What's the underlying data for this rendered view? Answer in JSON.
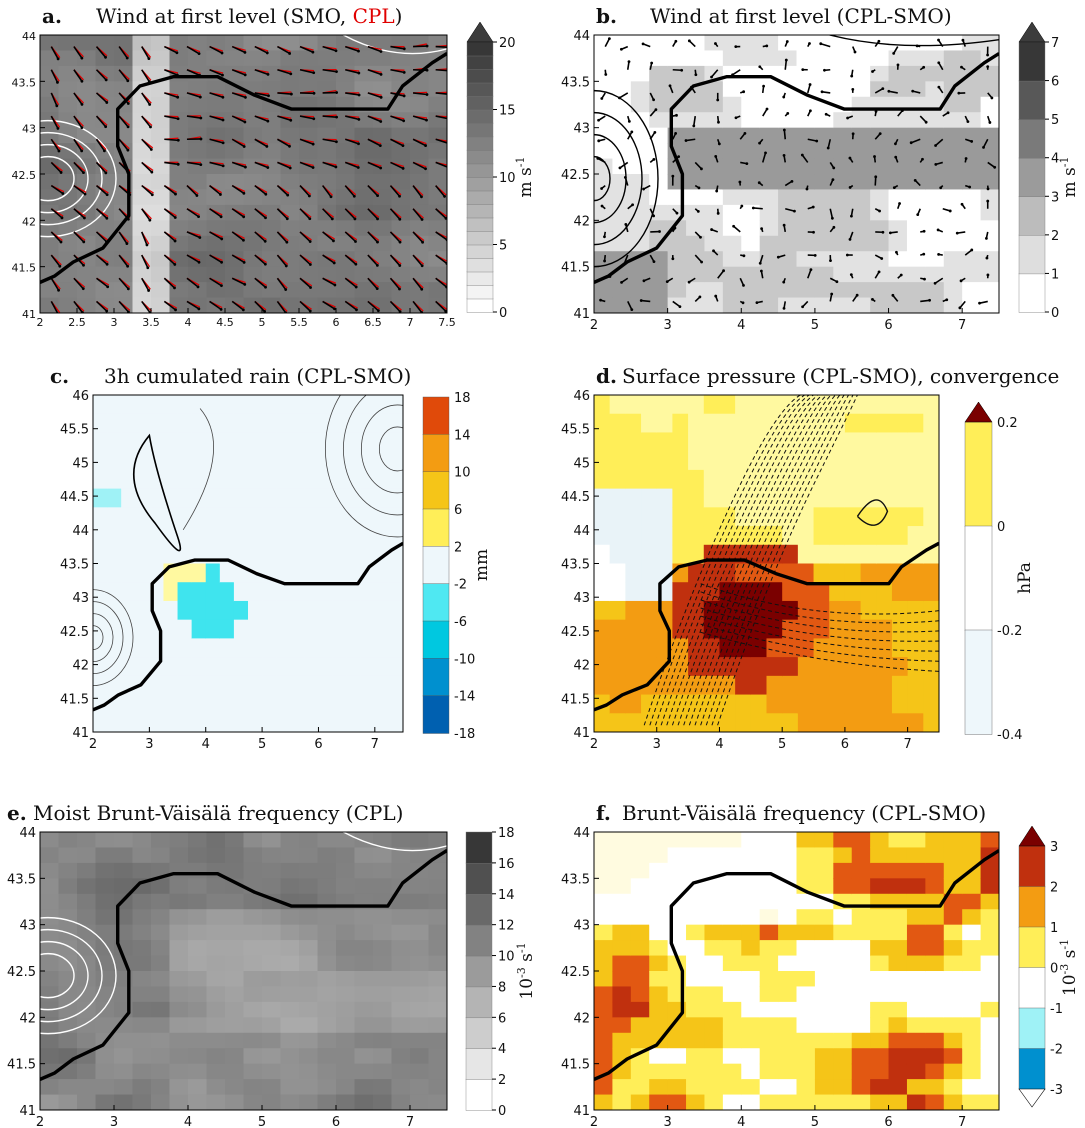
{
  "chart_data": [
    {
      "panel": "a",
      "type": "heatmap",
      "letter": "a.",
      "title": "Wind at first level (SMO, ",
      "title_highlight": "CPL",
      "title_end": ")",
      "highlight_color": "#e00000",
      "xlim": [
        2,
        7.5
      ],
      "ylim": [
        41,
        44
      ],
      "xticks": [
        "2",
        "2.5",
        "3",
        "3.5",
        "4",
        "4.5",
        "5",
        "5.5",
        "6",
        "6.5",
        "7",
        "7.5"
      ],
      "yticks": [
        "41",
        "41.5",
        "42",
        "42.5",
        "43",
        "43.5",
        "44"
      ],
      "colorbar": {
        "labels": [
          "0",
          "5",
          "10",
          "15",
          "20"
        ],
        "unit": "m s-1",
        "max": 20,
        "levels": 20,
        "top_arrow": true,
        "style": "gray"
      },
      "wind_vectors": true,
      "overlay_vector_color": "#e00000",
      "contour_color": "#ffffff"
    },
    {
      "panel": "b",
      "type": "heatmap",
      "letter": "b.",
      "title": "Wind at first level (CPL-SMO)",
      "xlim": [
        2,
        7.5
      ],
      "ylim": [
        41,
        44
      ],
      "xticks": [
        "2",
        "3",
        "4",
        "5",
        "6",
        "7"
      ],
      "yticks": [
        "41",
        "41.5",
        "42",
        "42.5",
        "43",
        "43.5",
        "44"
      ],
      "colorbar": {
        "labels": [
          "0",
          "1",
          "2",
          "3",
          "4",
          "5",
          "6",
          "7"
        ],
        "unit": "m s-1",
        "max": 7,
        "levels": 7,
        "top_arrow": true,
        "style": "gray"
      },
      "wind_vectors": true,
      "contour_color": "#000000"
    },
    {
      "panel": "c",
      "type": "heatmap",
      "letter": "c.",
      "title": "3h cumulated rain (CPL-SMO)",
      "xlim": [
        2,
        7.5
      ],
      "ylim": [
        41,
        46
      ],
      "xticks": [
        "2",
        "3",
        "4",
        "5",
        "6",
        "7"
      ],
      "yticks": [
        "41",
        "41.5",
        "42",
        "42.5",
        "43",
        "43.5",
        "44",
        "44.5",
        "45",
        "45.5",
        "46"
      ],
      "colorbar": {
        "labels": [
          "18",
          "14",
          "10",
          "6",
          "2",
          "-2",
          "-6",
          "-10",
          "-14",
          "-18"
        ],
        "unit": "mm",
        "style": "diverging"
      }
    },
    {
      "panel": "d",
      "type": "heatmap",
      "letter": "d.",
      "title": "Surface pressure (CPL-SMO), convergence",
      "xlim": [
        2,
        7.5
      ],
      "ylim": [
        41,
        46
      ],
      "xticks": [
        "2",
        "3",
        "4",
        "5",
        "6",
        "7"
      ],
      "yticks": [
        "41",
        "41.5",
        "42",
        "42.5",
        "43",
        "43.5",
        "44",
        "44.5",
        "45",
        "45.5",
        "46"
      ],
      "colorbar": {
        "labels": [
          "0.2",
          "0",
          "-0.2",
          "-0.4"
        ],
        "unit": "hPa",
        "top_arrow": true,
        "style": "diverging"
      }
    },
    {
      "panel": "e",
      "type": "heatmap",
      "letter": "e.",
      "title": "Moist Brunt-Väisälä frequency (CPL)",
      "xlim": [
        2,
        7.5
      ],
      "ylim": [
        41,
        44
      ],
      "xticks": [
        "2",
        "3",
        "4",
        "5",
        "6",
        "7"
      ],
      "yticks": [
        "41",
        "41.5",
        "42",
        "42.5",
        "43",
        "43.5",
        "44"
      ],
      "colorbar": {
        "labels": [
          "0",
          "2",
          "4",
          "6",
          "8",
          "10",
          "12",
          "14",
          "16",
          "18"
        ],
        "unit": "10-3 s-1",
        "max": 18,
        "levels": 9,
        "style": "gray"
      },
      "contour_color": "#ffffff"
    },
    {
      "panel": "f",
      "type": "heatmap",
      "letter": "f.",
      "title": "Brunt-Väisälä frequency (CPL-SMO)",
      "xlim": [
        2,
        7.5
      ],
      "ylim": [
        41,
        44
      ],
      "xticks": [
        "2",
        "3",
        "4",
        "5",
        "6",
        "7"
      ],
      "yticks": [
        "41",
        "41.5",
        "42",
        "42.5",
        "43",
        "43.5",
        "44"
      ],
      "colorbar": {
        "labels": [
          "3",
          "2",
          "1",
          "0",
          "-1",
          "-2",
          "-3"
        ],
        "unit": "10-3 s-1",
        "top_arrow": true,
        "bottom_arrow": true,
        "style": "diverging"
      }
    }
  ],
  "colors": {
    "coastline": "#000000",
    "warm": [
      "#fff9a0",
      "#ffee58",
      "#f5c518",
      "#f39c12",
      "#e25812",
      "#c0300e",
      "#7a0000"
    ],
    "cool": [
      "#eef7fb",
      "#9ff2f6",
      "#3fe4ee",
      "#00c8e0",
      "#0090cf",
      "#0060b0",
      "#0a1a8c"
    ]
  }
}
